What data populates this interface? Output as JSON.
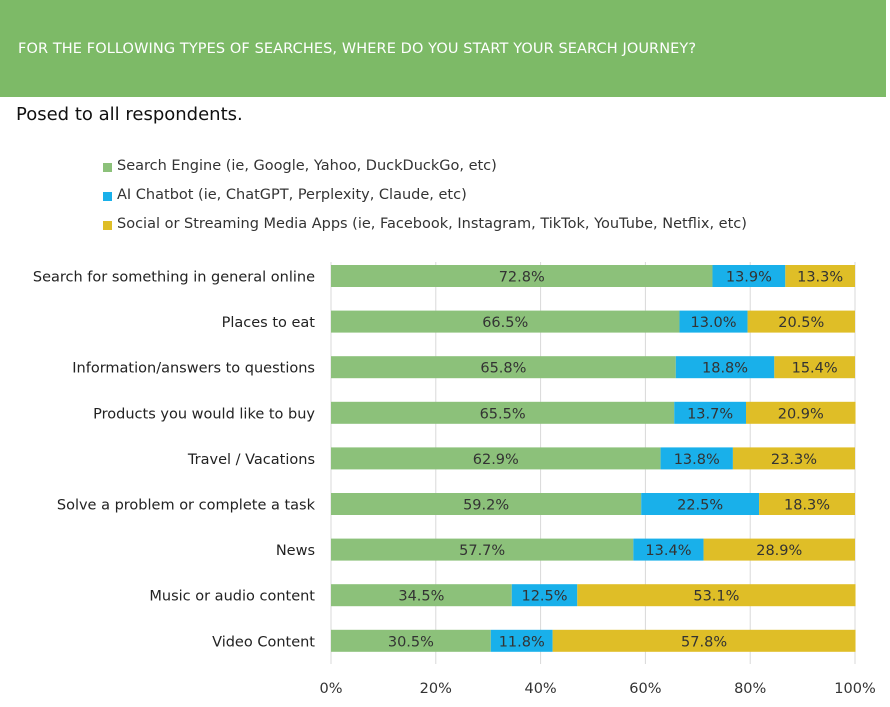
{
  "header": {
    "title": "FOR THE FOLLOWING TYPES OF SEARCHES, WHERE DO YOU START YOUR SEARCH JOURNEY?"
  },
  "subtitle": "Posed to all respondents.",
  "colors": {
    "header_bg": "#7dba67",
    "search_engine": "#8cc17a",
    "ai_chatbot": "#19b0ea",
    "social": "#dfbe27",
    "gridline": "#d9d9d9"
  },
  "chart_data": {
    "type": "bar",
    "orientation": "horizontal",
    "stacked": true,
    "title": "FOR THE FOLLOWING TYPES OF SEARCHES, WHERE DO YOU START YOUR SEARCH JOURNEY?",
    "subtitle": "Posed to all respondents.",
    "categories": [
      "Search for something in general online",
      "Places to eat",
      "Information/answers to questions",
      "Products you would like to buy",
      "Travel / Vacations",
      "Solve a problem or complete a task",
      "News",
      "Music or audio content",
      "Video Content"
    ],
    "series": [
      {
        "name": "Search Engine (ie, Google, Yahoo, DuckDuckGo, etc)",
        "color": "#8cc17a",
        "values": [
          72.8,
          66.5,
          65.8,
          65.5,
          62.9,
          59.2,
          57.7,
          34.5,
          30.5
        ]
      },
      {
        "name": "AI Chatbot (ie, ChatGPT, Perplexity, Claude, etc)",
        "color": "#19b0ea",
        "values": [
          13.9,
          13.0,
          18.8,
          13.7,
          13.8,
          22.5,
          13.4,
          12.5,
          11.8
        ]
      },
      {
        "name": "Social or Streaming Media Apps (ie, Facebook, Instagram, TikTok, YouTube, Netflix, etc)",
        "color": "#dfbe27",
        "values": [
          13.3,
          20.5,
          15.4,
          20.9,
          23.3,
          18.3,
          28.9,
          53.1,
          57.8
        ]
      }
    ],
    "x_ticks": [
      "0%",
      "20%",
      "40%",
      "60%",
      "80%",
      "100%"
    ],
    "xlim": [
      0,
      100
    ],
    "grid": true,
    "legend_position": "top-left"
  }
}
